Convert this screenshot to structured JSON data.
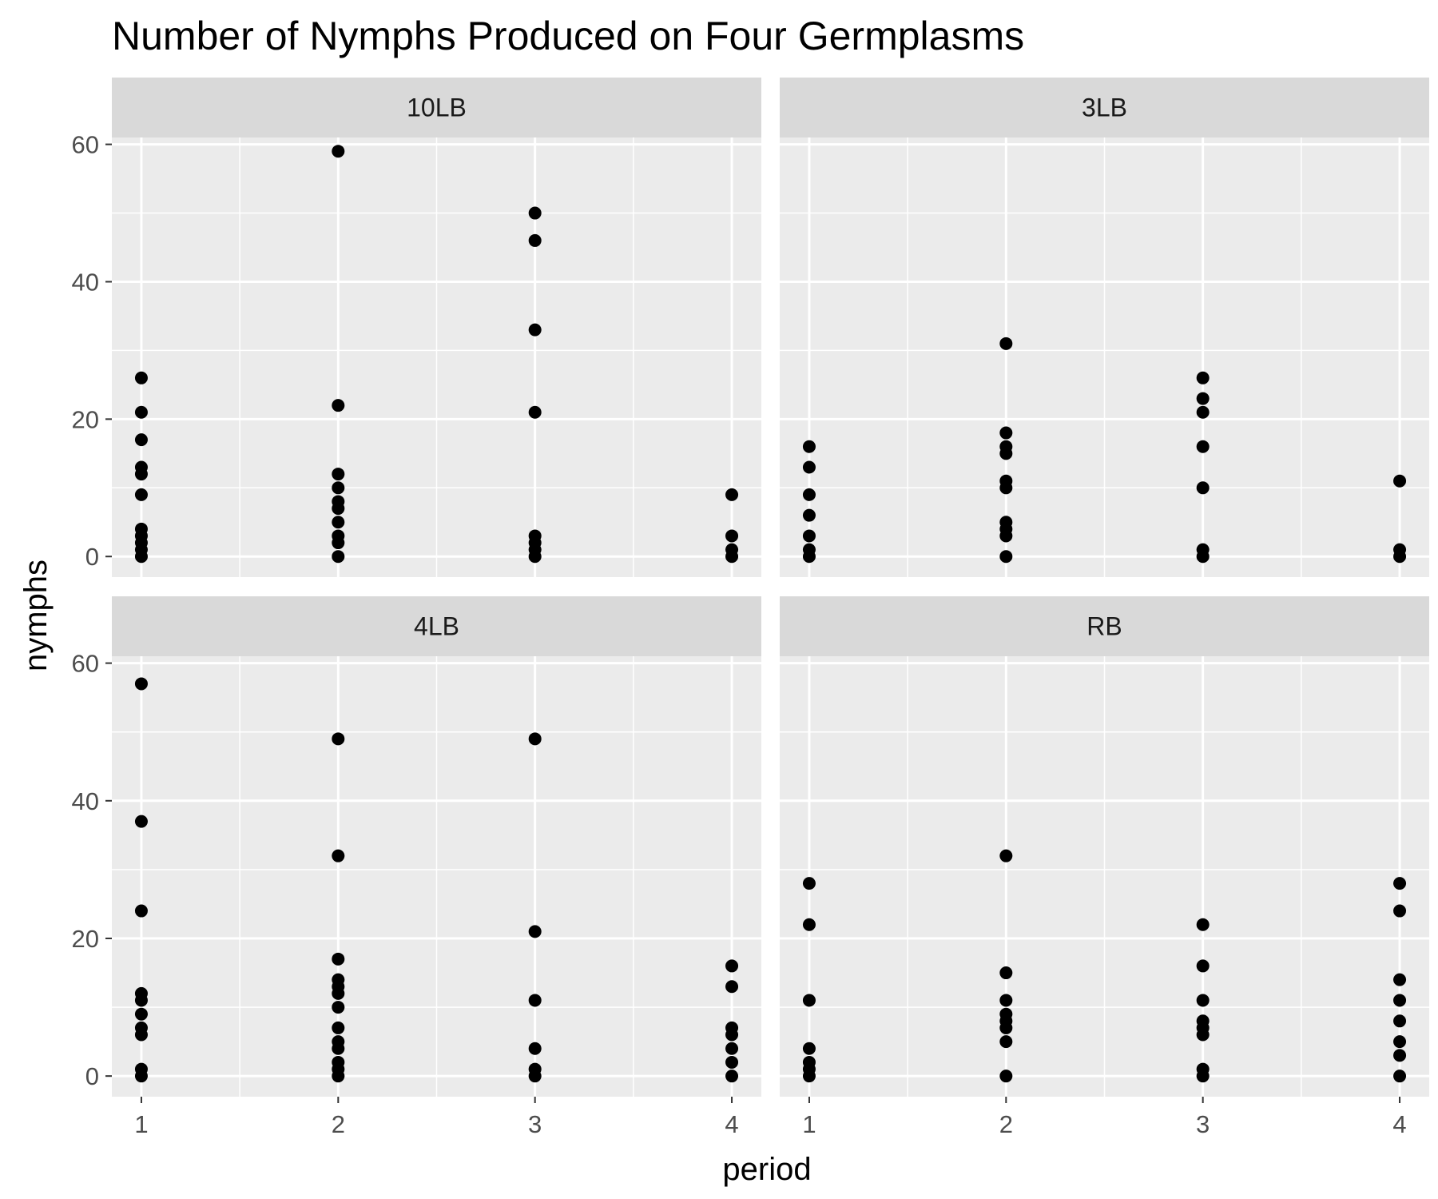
{
  "chart_data": {
    "type": "scatter",
    "title": "Number of Nymphs Produced on Four Germplasms",
    "xlabel": "period",
    "ylabel": "nymphs",
    "x_ticks": [
      "1",
      "2",
      "3",
      "4"
    ],
    "y_ticks": [
      "0",
      "20",
      "40",
      "60"
    ],
    "xlim": [
      0.85,
      4.15
    ],
    "ylim": [
      -3,
      61
    ],
    "grid": true,
    "point_color": "#000000",
    "panels": [
      {
        "name": "10LB",
        "points": [
          [
            1,
            26
          ],
          [
            1,
            21
          ],
          [
            1,
            17
          ],
          [
            1,
            13
          ],
          [
            1,
            12
          ],
          [
            1,
            9
          ],
          [
            1,
            4
          ],
          [
            1,
            3
          ],
          [
            1,
            2
          ],
          [
            1,
            1
          ],
          [
            1,
            0
          ],
          [
            2,
            59
          ],
          [
            2,
            22
          ],
          [
            2,
            12
          ],
          [
            2,
            10
          ],
          [
            2,
            8
          ],
          [
            2,
            7
          ],
          [
            2,
            5
          ],
          [
            2,
            3
          ],
          [
            2,
            2
          ],
          [
            2,
            0
          ],
          [
            3,
            50
          ],
          [
            3,
            46
          ],
          [
            3,
            33
          ],
          [
            3,
            21
          ],
          [
            3,
            3
          ],
          [
            3,
            2
          ],
          [
            3,
            1
          ],
          [
            3,
            0
          ],
          [
            4,
            9
          ],
          [
            4,
            3
          ],
          [
            4,
            1
          ],
          [
            4,
            0
          ]
        ]
      },
      {
        "name": "3LB",
        "points": [
          [
            1,
            16
          ],
          [
            1,
            13
          ],
          [
            1,
            9
          ],
          [
            1,
            6
          ],
          [
            1,
            3
          ],
          [
            1,
            1
          ],
          [
            1,
            0
          ],
          [
            2,
            31
          ],
          [
            2,
            18
          ],
          [
            2,
            16
          ],
          [
            2,
            15
          ],
          [
            2,
            11
          ],
          [
            2,
            10
          ],
          [
            2,
            5
          ],
          [
            2,
            4
          ],
          [
            2,
            3
          ],
          [
            2,
            0
          ],
          [
            3,
            26
          ],
          [
            3,
            23
          ],
          [
            3,
            21
          ],
          [
            3,
            16
          ],
          [
            3,
            10
          ],
          [
            3,
            1
          ],
          [
            3,
            0
          ],
          [
            4,
            11
          ],
          [
            4,
            1
          ],
          [
            4,
            0
          ]
        ]
      },
      {
        "name": "4LB",
        "points": [
          [
            1,
            57
          ],
          [
            1,
            37
          ],
          [
            1,
            24
          ],
          [
            1,
            12
          ],
          [
            1,
            11
          ],
          [
            1,
            9
          ],
          [
            1,
            7
          ],
          [
            1,
            6
          ],
          [
            1,
            1
          ],
          [
            1,
            0
          ],
          [
            2,
            49
          ],
          [
            2,
            32
          ],
          [
            2,
            17
          ],
          [
            2,
            14
          ],
          [
            2,
            13
          ],
          [
            2,
            12
          ],
          [
            2,
            10
          ],
          [
            2,
            7
          ],
          [
            2,
            5
          ],
          [
            2,
            4
          ],
          [
            2,
            2
          ],
          [
            2,
            1
          ],
          [
            2,
            0
          ],
          [
            3,
            49
          ],
          [
            3,
            21
          ],
          [
            3,
            11
          ],
          [
            3,
            4
          ],
          [
            3,
            1
          ],
          [
            3,
            0
          ],
          [
            4,
            16
          ],
          [
            4,
            13
          ],
          [
            4,
            7
          ],
          [
            4,
            6
          ],
          [
            4,
            4
          ],
          [
            4,
            2
          ],
          [
            4,
            0
          ]
        ]
      },
      {
        "name": "RB",
        "points": [
          [
            1,
            28
          ],
          [
            1,
            22
          ],
          [
            1,
            11
          ],
          [
            1,
            4
          ],
          [
            1,
            2
          ],
          [
            1,
            1
          ],
          [
            1,
            0
          ],
          [
            2,
            32
          ],
          [
            2,
            15
          ],
          [
            2,
            11
          ],
          [
            2,
            9
          ],
          [
            2,
            8
          ],
          [
            2,
            7
          ],
          [
            2,
            5
          ],
          [
            2,
            0
          ],
          [
            3,
            22
          ],
          [
            3,
            16
          ],
          [
            3,
            11
          ],
          [
            3,
            8
          ],
          [
            3,
            7
          ],
          [
            3,
            6
          ],
          [
            3,
            1
          ],
          [
            3,
            0
          ],
          [
            4,
            28
          ],
          [
            4,
            24
          ],
          [
            4,
            14
          ],
          [
            4,
            11
          ],
          [
            4,
            8
          ],
          [
            4,
            5
          ],
          [
            4,
            3
          ],
          [
            4,
            0
          ]
        ]
      }
    ]
  }
}
